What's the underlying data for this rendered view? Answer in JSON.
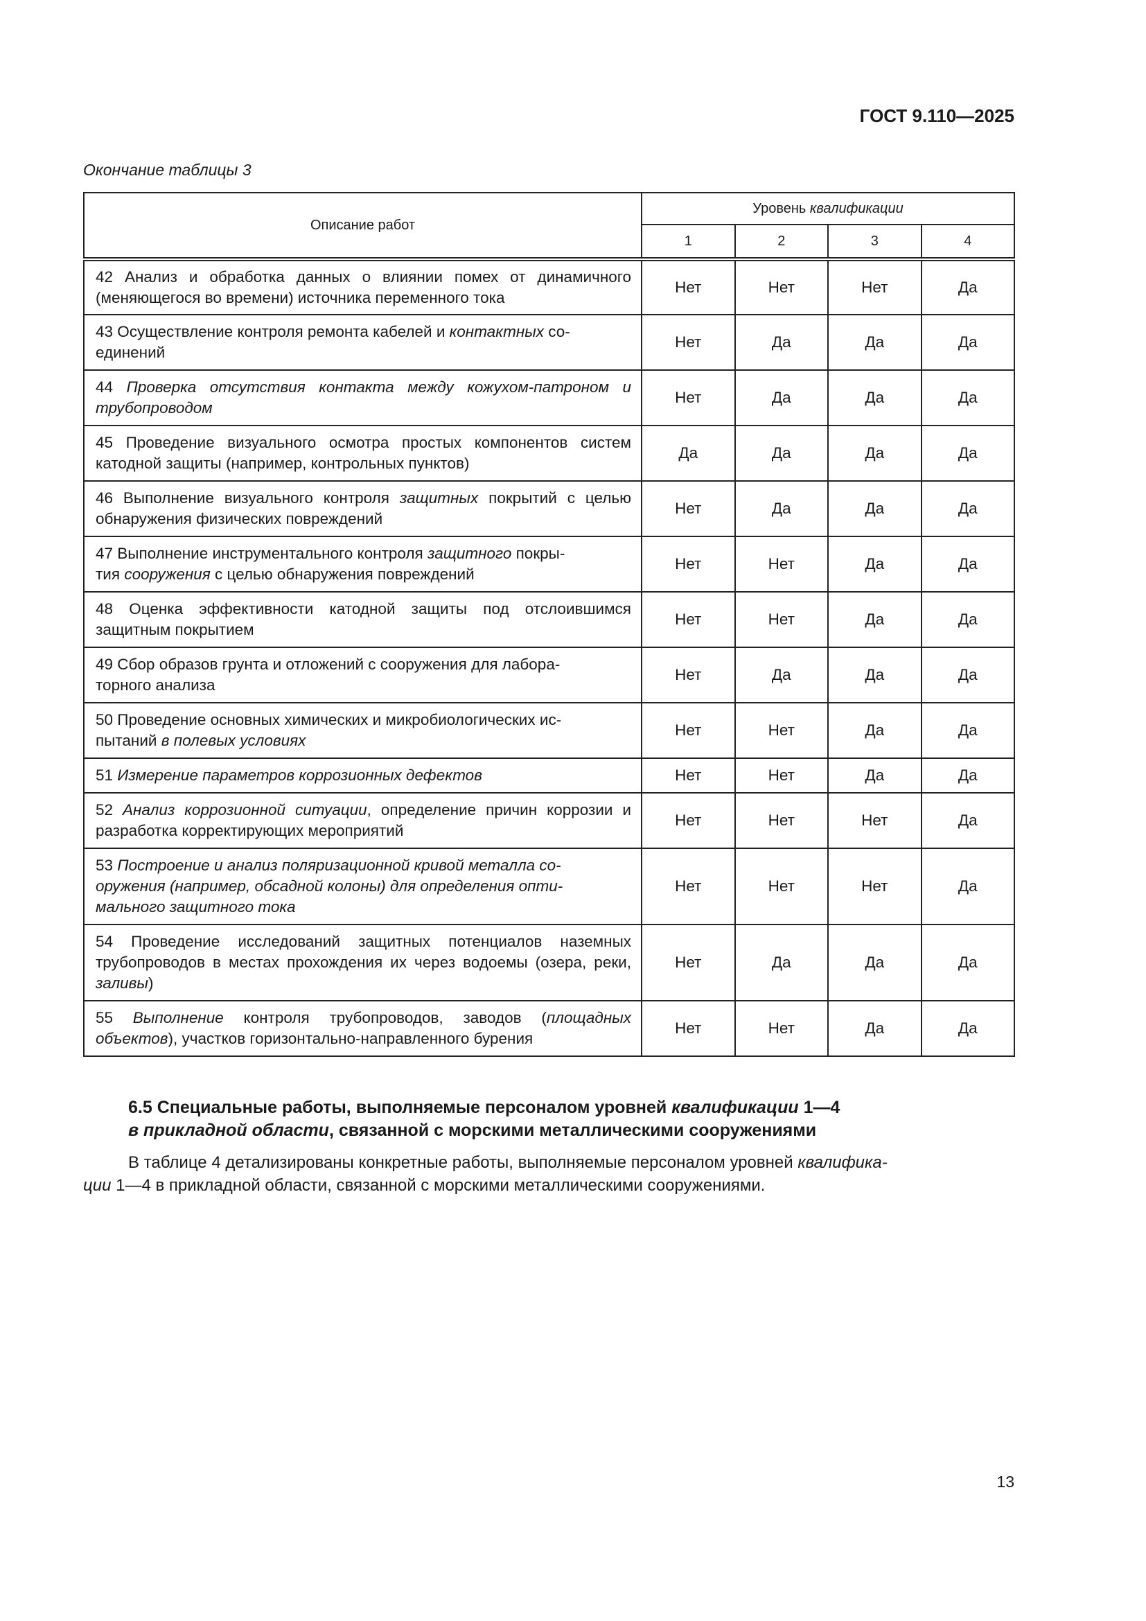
{
  "header": {
    "doc_code": "ГОСТ 9.110—2025"
  },
  "caption": "Окончание таблицы 3",
  "table": {
    "col_description": "Описание работ",
    "col_level_prefix": "Уровень ",
    "col_level_italic": "квалификации",
    "levels": [
      "1",
      "2",
      "3",
      "4"
    ],
    "rows": [
      {
        "desc": [
          {
            "t": "42 Анализ и обработка данных о влиянии помех от динамичного (меняющегося во времени) источника переменного тока",
            "i": false
          }
        ],
        "values": [
          "Нет",
          "Нет",
          "Нет",
          "Да"
        ],
        "h": 80
      },
      {
        "desc": [
          {
            "t": "43 Осуществление контроля ремонта кабелей и ",
            "i": false
          },
          {
            "t": "контактных",
            "i": true
          },
          {
            "t": " со-\nединений",
            "i": false
          }
        ],
        "values": [
          "Нет",
          "Да",
          "Да",
          "Да"
        ],
        "h": 80
      },
      {
        "desc": [
          {
            "t": "44 ",
            "i": false
          },
          {
            "t": "Проверка отсутствия контакта между кожухом-патроном и трубопроводом",
            "i": true
          }
        ],
        "values": [
          "Нет",
          "Да",
          "Да",
          "Да"
        ],
        "h": 80
      },
      {
        "desc": [
          {
            "t": "45 Проведение визуального осмотра простых компонентов систем катодной защиты (например, контрольных пунктов)",
            "i": false
          }
        ],
        "values": [
          "Да",
          "Да",
          "Да",
          "Да"
        ],
        "h": 80
      },
      {
        "desc": [
          {
            "t": "46 Выполнение визуального контроля ",
            "i": false
          },
          {
            "t": "защитных",
            "i": true
          },
          {
            "t": " покрытий с целью обнаружения физических повреждений",
            "i": false
          }
        ],
        "values": [
          "Нет",
          "Да",
          "Да",
          "Да"
        ],
        "h": 80
      },
      {
        "desc": [
          {
            "t": "47 Выполнение инструментального контроля ",
            "i": false
          },
          {
            "t": "защитного",
            "i": true
          },
          {
            "t": " покры-\nтия ",
            "i": false
          },
          {
            "t": "сооружения",
            "i": true
          },
          {
            "t": " с целью обнаружения повреждений",
            "i": false
          }
        ],
        "values": [
          "Нет",
          "Нет",
          "Да",
          "Да"
        ],
        "h": 80
      },
      {
        "desc": [
          {
            "t": "48 Оценка эффективности катодной защиты под отслоившимся защитным покрытием",
            "i": false
          }
        ],
        "values": [
          "Нет",
          "Нет",
          "Да",
          "Да"
        ],
        "h": 80
      },
      {
        "desc": [
          {
            "t": "49 Сбор образов грунта и отложений с сооружения для лабора-\nторного анализа",
            "i": false
          }
        ],
        "values": [
          "Нет",
          "Да",
          "Да",
          "Да"
        ],
        "h": 80
      },
      {
        "desc": [
          {
            "t": "50 Проведение основных химических и микробиологических ис-\nпытаний ",
            "i": false
          },
          {
            "t": "в полевых условиях",
            "i": true
          }
        ],
        "values": [
          "Нет",
          "Нет",
          "Да",
          "Да"
        ],
        "h": 80
      },
      {
        "desc": [
          {
            "t": "51 ",
            "i": false
          },
          {
            "t": "Измерение параметров коррозионных дефектов",
            "i": true
          }
        ],
        "values": [
          "Нет",
          "Нет",
          "Да",
          "Да"
        ],
        "h": 50
      },
      {
        "desc": [
          {
            "t": "52 ",
            "i": false
          },
          {
            "t": "Анализ коррозионной ситуации",
            "i": true
          },
          {
            "t": ", определение причин коррозии и разработка корректирующих мероприятий",
            "i": false
          }
        ],
        "values": [
          "Нет",
          "Нет",
          "Нет",
          "Да"
        ],
        "h": 80
      },
      {
        "desc": [
          {
            "t": "53 ",
            "i": false
          },
          {
            "t": "Построение и анализ поляризационной кривой металла со-\nоружения (например, обсадной колоны) для определения опти-\nмального защитного тока",
            "i": true
          }
        ],
        "values": [
          "Нет",
          "Нет",
          "Нет",
          "Да"
        ],
        "h": 110
      },
      {
        "desc": [
          {
            "t": "54 Проведение исследований защитных потенциалов наземных трубопроводов в местах прохождения их через водоемы (озера, реки, ",
            "i": false
          },
          {
            "t": "заливы",
            "i": true
          },
          {
            "t": ")",
            "i": false
          }
        ],
        "values": [
          "Нет",
          "Да",
          "Да",
          "Да"
        ],
        "h": 110
      },
      {
        "desc": [
          {
            "t": "55 ",
            "i": false
          },
          {
            "t": "Выполнение",
            "i": true
          },
          {
            "t": " контроля трубопроводов, заводов (",
            "i": false
          },
          {
            "t": "площадных объектов",
            "i": true
          },
          {
            "t": "), участков горизонтально-направленного бурения",
            "i": false
          }
        ],
        "values": [
          "Нет",
          "Нет",
          "Да",
          "Да"
        ],
        "h": 80
      }
    ]
  },
  "section": {
    "heading": [
      {
        "t": "6.5 Специальные работы, выполняемые персоналом уровней ",
        "i": false
      },
      {
        "t": "квалификации",
        "i": true
      },
      {
        "t": " 1—4\n",
        "i": false
      },
      {
        "t": "в прикладной области",
        "i": true
      },
      {
        "t": ", связанной с морскими металлическими сооружениями",
        "i": false
      }
    ],
    "paragraph": [
      {
        "t": "В таблице 4 детализированы конкретные работы, выполняемые персоналом уровней ",
        "i": false
      },
      {
        "t": "квалифика-\nции",
        "i": true
      },
      {
        "t": " 1—4 в прикладной области, связанной с морскими металлическими сооружениями.",
        "i": false
      }
    ]
  },
  "page_number": "13"
}
